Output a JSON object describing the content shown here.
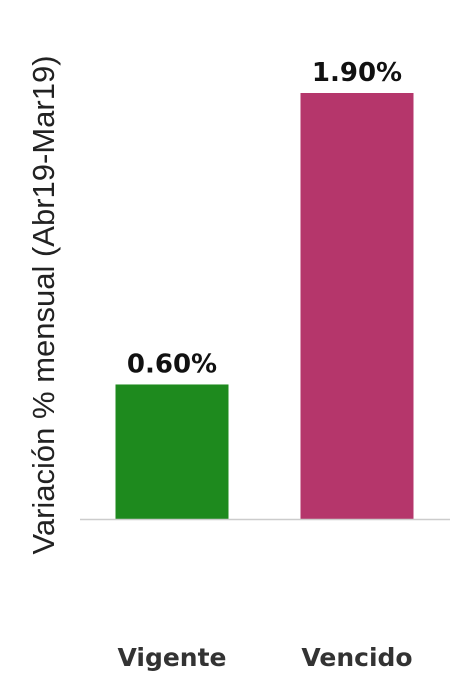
{
  "chart_data": {
    "type": "bar",
    "categories": [
      "Vigente",
      "Vencido"
    ],
    "values": [
      0.6,
      1.9
    ],
    "value_labels": [
      "0.60%",
      "1.90%"
    ],
    "colors": [
      "#1e8a1e",
      "#b5366b"
    ],
    "title": "",
    "xlabel": "",
    "ylabel": "Variación % mensual (Abr19-Mar19)",
    "ylim": [
      0,
      1.9
    ],
    "grid": false,
    "legend": "none"
  }
}
